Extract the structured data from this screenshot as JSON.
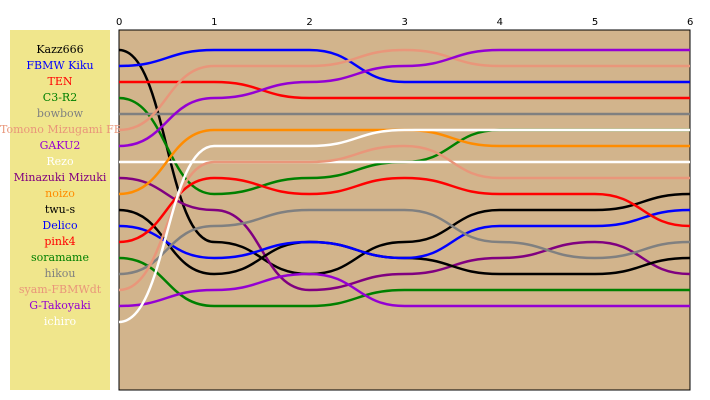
{
  "chart_data": {
    "type": "line",
    "title": "",
    "xlabel": "",
    "ylabel": "",
    "x": [
      0,
      1,
      2,
      3,
      4,
      5,
      6
    ],
    "x_ticks": [
      "0",
      "1",
      "2",
      "3",
      "4",
      "5",
      "6"
    ],
    "ylim": [
      1,
      18
    ],
    "y_inverted": true,
    "grid": false,
    "legend_placement": "left",
    "plot_background": "#d2b48c",
    "legend_background": "#f0e68c",
    "series": [
      {
        "name": "Kazz666",
        "color": "#000000",
        "values": [
          1,
          13,
          15,
          13,
          11,
          11,
          10
        ]
      },
      {
        "name": "FBMW Kiku",
        "color": "#0000ff",
        "values": [
          2,
          1,
          1,
          3,
          3,
          3,
          3
        ]
      },
      {
        "name": "TEN",
        "color": "#ff0000",
        "values": [
          3,
          3,
          4,
          4,
          4,
          4,
          4
        ]
      },
      {
        "name": "C3-R2",
        "color": "#008000",
        "values": [
          4,
          10,
          9,
          8,
          6,
          6,
          6
        ]
      },
      {
        "name": "bowbow",
        "color": "#808080",
        "values": [
          5,
          5,
          5,
          5,
          5,
          5,
          5
        ]
      },
      {
        "name": "Tomono Mizugami FBMW",
        "color": "#e9967a",
        "values": [
          6,
          2,
          2,
          1,
          2,
          2,
          2
        ]
      },
      {
        "name": "GAKU2",
        "color": "#9400d3",
        "values": [
          7,
          4,
          3,
          2,
          1,
          1,
          1
        ]
      },
      {
        "name": "Rezo",
        "color": "#ffffff",
        "values": [
          8,
          8,
          8,
          8,
          8,
          8,
          8
        ]
      },
      {
        "name": "Minazuki Mizuki",
        "color": "#800080",
        "values": [
          9,
          11,
          16,
          15,
          14,
          13,
          15
        ]
      },
      {
        "name": "noizo",
        "color": "#ff8c00",
        "values": [
          10,
          6,
          6,
          6,
          7,
          7,
          7
        ]
      },
      {
        "name": "twu-s",
        "color": "#000000",
        "values": [
          11,
          15,
          13,
          14,
          15,
          15,
          14
        ]
      },
      {
        "name": "Delico",
        "color": "#0000ff",
        "values": [
          12,
          14,
          13,
          14,
          12,
          12,
          11
        ]
      },
      {
        "name": "pink4",
        "color": "#ff0000",
        "values": [
          13,
          9,
          10,
          9,
          10,
          10,
          12
        ]
      },
      {
        "name": "soramame",
        "color": "#008000",
        "values": [
          14,
          17,
          17,
          16,
          16,
          16,
          16
        ]
      },
      {
        "name": "hikou",
        "color": "#808080",
        "values": [
          15,
          12,
          11,
          11,
          13,
          14,
          13
        ]
      },
      {
        "name": "syam-FBMWdt",
        "color": "#e9967a",
        "values": [
          16,
          8,
          8,
          7,
          9,
          9,
          9
        ]
      },
      {
        "name": "G-Takoyaki",
        "color": "#9400d3",
        "values": [
          17,
          16,
          15,
          17,
          17,
          17,
          17
        ]
      },
      {
        "name": "ichiro",
        "color": "#ffffff",
        "values": [
          18,
          7,
          7,
          6,
          6,
          6,
          6
        ]
      }
    ]
  }
}
